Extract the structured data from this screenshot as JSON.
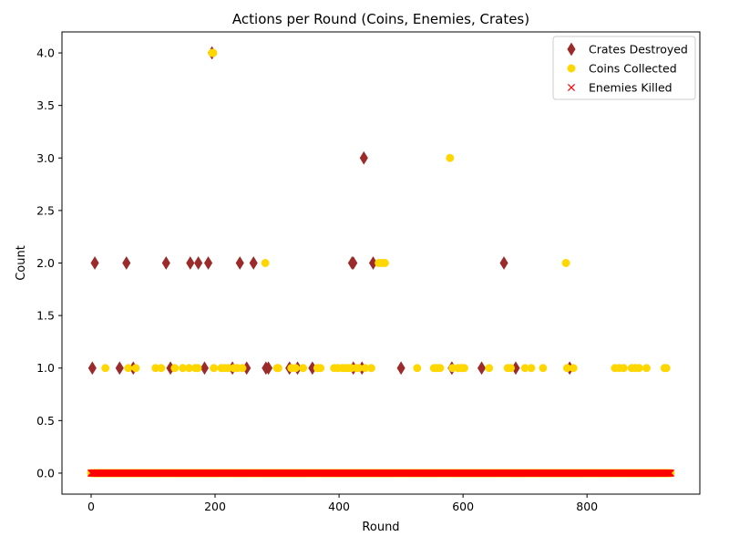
{
  "chart_data": {
    "type": "scatter",
    "title": "Actions per Round (Coins, Enemies, Crates)",
    "xlabel": "Round",
    "ylabel": "Count",
    "xlim": [
      -47,
      982
    ],
    "ylim": [
      -0.2,
      4.2
    ],
    "xticks": [
      0,
      200,
      400,
      600,
      800
    ],
    "yticks": [
      0.0,
      0.5,
      1.0,
      1.5,
      2.0,
      2.5,
      3.0,
      3.5,
      4.0
    ],
    "xtick_labels": [
      "0",
      "200",
      "400",
      "600",
      "800"
    ],
    "ytick_labels": [
      "0.0",
      "0.5",
      "1.0",
      "1.5",
      "2.0",
      "2.5",
      "3.0",
      "3.5",
      "4.0"
    ],
    "grid": false,
    "legend_position": "top-right",
    "rounds": 935,
    "series": [
      {
        "name": "Crates Destroyed",
        "marker": "thin-diamond",
        "color": "#9b2a2a",
        "points": [
          [
            2,
            1
          ],
          [
            6,
            2
          ],
          [
            46,
            1
          ],
          [
            57,
            2
          ],
          [
            68,
            1
          ],
          [
            121,
            2
          ],
          [
            128,
            1
          ],
          [
            160,
            2
          ],
          [
            173,
            2
          ],
          [
            183,
            1
          ],
          [
            189,
            2
          ],
          [
            195,
            4
          ],
          [
            228,
            1
          ],
          [
            240,
            2
          ],
          [
            251,
            1
          ],
          [
            262,
            2
          ],
          [
            282,
            1
          ],
          [
            286,
            1
          ],
          [
            320,
            1
          ],
          [
            333,
            1
          ],
          [
            357,
            1
          ],
          [
            421,
            2
          ],
          [
            423,
            2
          ],
          [
            423,
            1
          ],
          [
            437,
            1
          ],
          [
            440,
            3
          ],
          [
            455,
            2
          ],
          [
            500,
            1
          ],
          [
            582,
            1
          ],
          [
            582,
            1
          ],
          [
            630,
            1
          ],
          [
            666,
            2
          ],
          [
            685,
            1
          ],
          [
            772,
            1
          ]
        ]
      },
      {
        "name": "Coins Collected",
        "marker": "circle",
        "color": "#ffd700",
        "points": [
          [
            23,
            1
          ],
          [
            60,
            1
          ],
          [
            72,
            1
          ],
          [
            104,
            1
          ],
          [
            113,
            1
          ],
          [
            135,
            1
          ],
          [
            148,
            1
          ],
          [
            158,
            1
          ],
          [
            168,
            1
          ],
          [
            172,
            1
          ],
          [
            195,
            4
          ],
          [
            197,
            4
          ],
          [
            198,
            1
          ],
          [
            210,
            1
          ],
          [
            215,
            1
          ],
          [
            221,
            1
          ],
          [
            230,
            1
          ],
          [
            236,
            1
          ],
          [
            244,
            1
          ],
          [
            281,
            2
          ],
          [
            300,
            1
          ],
          [
            302,
            1
          ],
          [
            323,
            1
          ],
          [
            330,
            1
          ],
          [
            342,
            1
          ],
          [
            365,
            1
          ],
          [
            370,
            1
          ],
          [
            392,
            1
          ],
          [
            398,
            1
          ],
          [
            405,
            1
          ],
          [
            410,
            1
          ],
          [
            415,
            1
          ],
          [
            420,
            1
          ],
          [
            428,
            1
          ],
          [
            432,
            1
          ],
          [
            442,
            1
          ],
          [
            452,
            1
          ],
          [
            464,
            2
          ],
          [
            469,
            2
          ],
          [
            474,
            2
          ],
          [
            526,
            1
          ],
          [
            553,
            1
          ],
          [
            558,
            1
          ],
          [
            563,
            1
          ],
          [
            579,
            3
          ],
          [
            583,
            1
          ],
          [
            592,
            1
          ],
          [
            597,
            1
          ],
          [
            602,
            1
          ],
          [
            642,
            1
          ],
          [
            672,
            1
          ],
          [
            677,
            1
          ],
          [
            700,
            1
          ],
          [
            710,
            1
          ],
          [
            729,
            1
          ],
          [
            766,
            2
          ],
          [
            768,
            1
          ],
          [
            778,
            1
          ],
          [
            845,
            1
          ],
          [
            852,
            1
          ],
          [
            859,
            1
          ],
          [
            872,
            1
          ],
          [
            878,
            1
          ],
          [
            884,
            1
          ],
          [
            896,
            1
          ],
          [
            925,
            1
          ],
          [
            928,
            1
          ]
        ]
      },
      {
        "name": "Enemies Killed",
        "marker": "x",
        "color": "#ff0000",
        "points_note": "0 for every round 0-935",
        "points": []
      }
    ]
  }
}
